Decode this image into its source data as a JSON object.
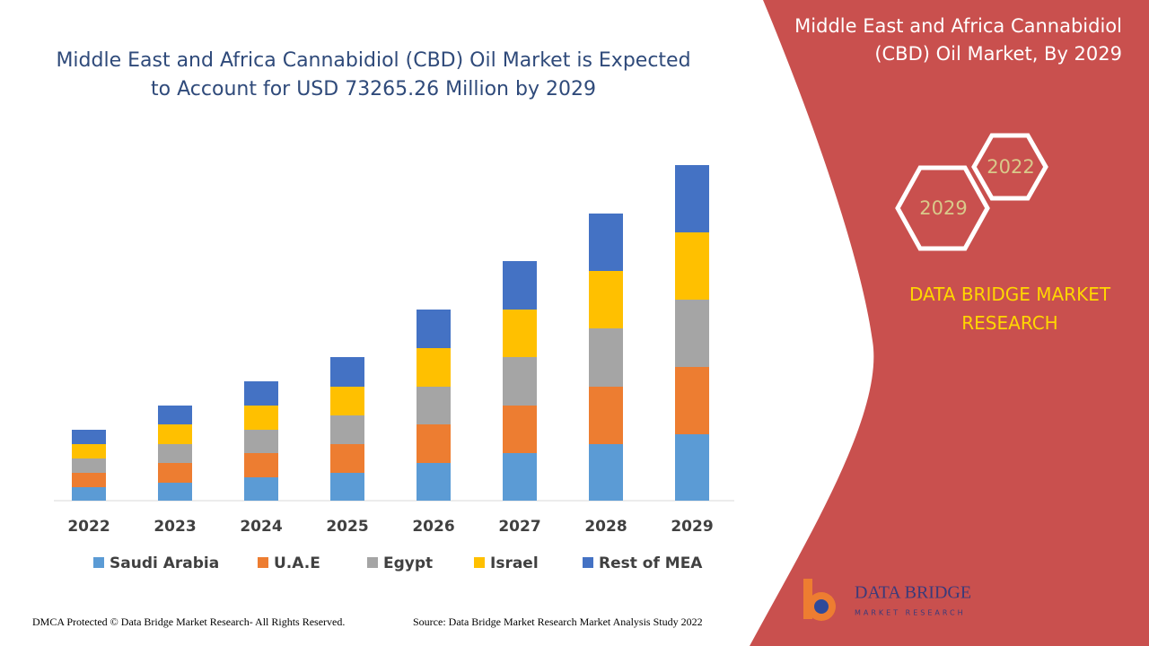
{
  "chart_data": {
    "type": "bar",
    "stacked": true,
    "title": "Middle East and Africa Cannabidiol (CBD) Oil Market is Expected to Account for USD 73265.26 Million by 2029",
    "categories": [
      "2022",
      "2023",
      "2024",
      "2025",
      "2026",
      "2027",
      "2028",
      "2029"
    ],
    "series": [
      {
        "name": "Saudi Arabia",
        "color": "#5b9bd5",
        "values": [
          15,
          20,
          26,
          31,
          42,
          53,
          63,
          74
        ]
      },
      {
        "name": "U.A.E",
        "color": "#ed7d31",
        "values": [
          16,
          22,
          27,
          32,
          43,
          53,
          64,
          75
        ]
      },
      {
        "name": "Egypt",
        "color": "#a5a5a5",
        "values": [
          16,
          21,
          26,
          32,
          42,
          54,
          65,
          75
        ]
      },
      {
        "name": "Israel",
        "color": "#ffc000",
        "values": [
          16,
          22,
          27,
          32,
          43,
          53,
          64,
          75
        ]
      },
      {
        "name": "Rest of MEA",
        "color": "#4472c4",
        "values": [
          16,
          21,
          27,
          33,
          43,
          54,
          64,
          75
        ]
      }
    ],
    "legend": "bottom"
  },
  "side_panel": {
    "title": "Middle East and Africa Cannabidiol (CBD) Oil Market, By 2029",
    "hexagons": [
      "2022",
      "2029"
    ],
    "brand": "DATA BRIDGE MARKET RESEARCH"
  },
  "logo": {
    "name": "DATA BRIDGE",
    "tagline": "MARKET RESEARCH"
  },
  "footer": {
    "copyright": "DMCA Protected © Data Bridge Market Research- All Rights Reserved.",
    "source": "Source: Data Bridge Market Research Market Analysis Study 2022"
  }
}
